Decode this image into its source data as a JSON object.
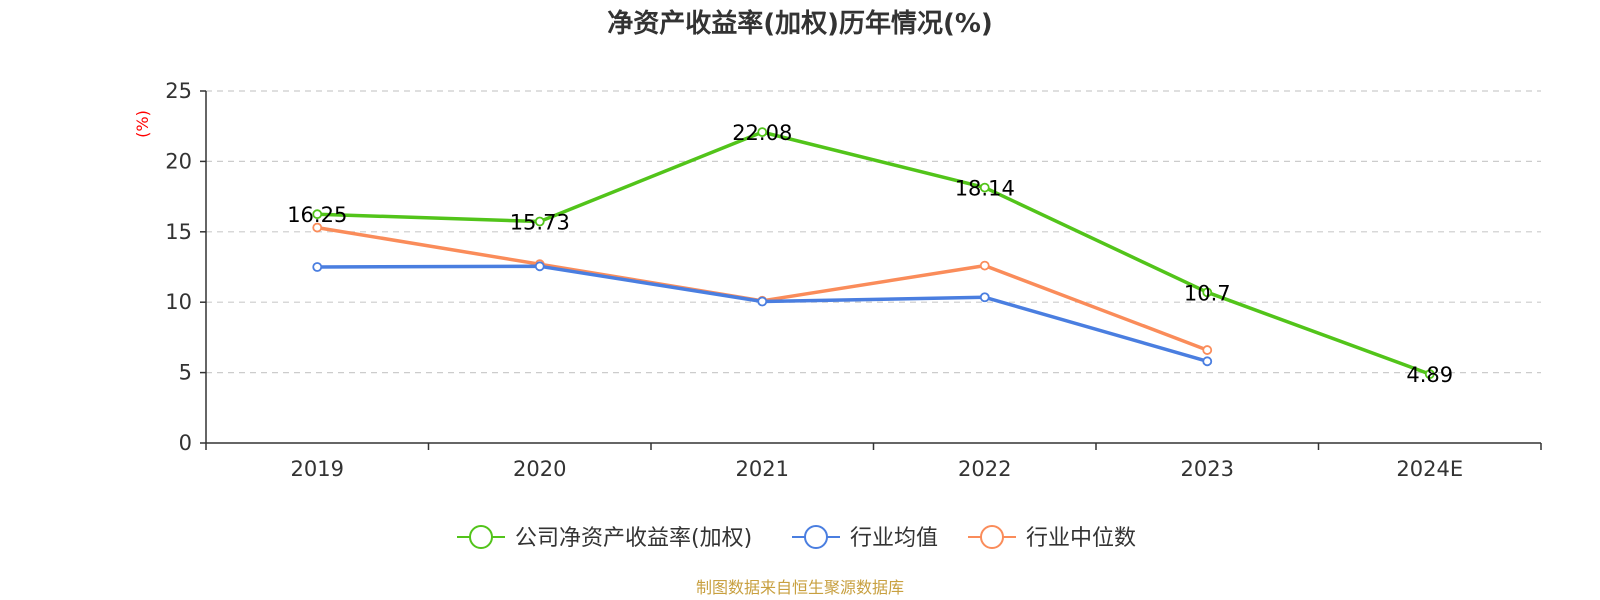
{
  "colors": {
    "company": "#52c41a",
    "industry_avg": "#4a7ee0",
    "industry_median": "#fa8c5a",
    "axis": "#333333",
    "grid": "#cccccc",
    "unit": "#ff0000",
    "source": "#c8a040"
  },
  "source_text": "制图数据来自恒生聚源数据库",
  "chart_data": {
    "type": "line",
    "title": "净资产收益率(加权)历年情况(%)",
    "ylabel": "(%)",
    "xlabel": "",
    "categories": [
      "2019",
      "2020",
      "2021",
      "2022",
      "2023",
      "2024E"
    ],
    "ylim": [
      0,
      25
    ],
    "yticks": [
      0,
      5,
      10,
      15,
      20,
      25
    ],
    "ytick_labels": [
      "0",
      "5",
      "10",
      "15",
      "20",
      "25"
    ],
    "grid": true,
    "legend_position": "bottom",
    "series": [
      {
        "name": "公司净资产收益率(加权)",
        "color_key": "company",
        "values": [
          16.25,
          15.73,
          22.08,
          18.14,
          10.7,
          4.89
        ],
        "labels": [
          "16.25",
          "15.73",
          "22.08",
          "18.14",
          "10.7",
          "4.89"
        ]
      },
      {
        "name": "行业均值",
        "color_key": "industry_avg",
        "values": [
          12.5,
          12.55,
          10.05,
          10.35,
          5.8,
          null
        ],
        "labels": null
      },
      {
        "name": "行业中位数",
        "color_key": "industry_median",
        "values": [
          15.3,
          12.7,
          10.1,
          12.6,
          6.6,
          null
        ],
        "labels": null
      }
    ]
  }
}
